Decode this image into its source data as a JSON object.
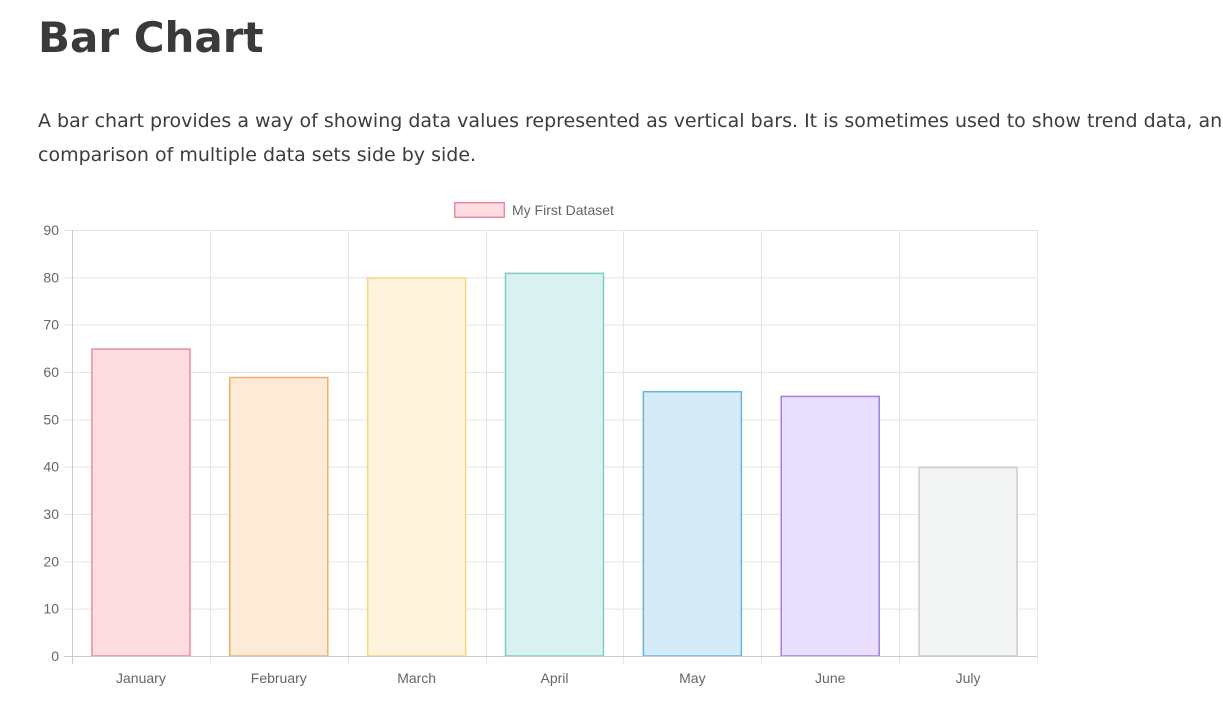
{
  "page": {
    "title": "Bar Chart",
    "description": "A bar chart provides a way of showing data values represented as vertical bars. It is sometimes used to show trend data, and the comparison of multiple data sets side by side."
  },
  "chart_data": {
    "type": "bar",
    "categories": [
      "January",
      "February",
      "March",
      "April",
      "May",
      "June",
      "July"
    ],
    "series": [
      {
        "name": "My First Dataset",
        "values": [
          65,
          59,
          80,
          81,
          56,
          55,
          40
        ]
      }
    ],
    "ylim": [
      0,
      90
    ],
    "yticks": [
      0,
      10,
      20,
      30,
      40,
      50,
      60,
      70,
      80,
      90
    ],
    "grid": true,
    "legend": "top",
    "bar_fills": [
      "#ffdee3",
      "#fdebd8",
      "#fef3dc",
      "#d9f1f1",
      "#d6ebf8",
      "#e9dffe",
      "#f3f4f4"
    ],
    "bar_borders": [
      "#ef8aa0",
      "#efb06a",
      "#f7d57c",
      "#7ecdcd",
      "#68b4e0",
      "#a17de8",
      "#c9cbce"
    ],
    "legend_fill": "#ffdee3",
    "legend_border": "#ef8aa0",
    "grid_color": "#e5e5e5",
    "text_color": "#666666"
  }
}
